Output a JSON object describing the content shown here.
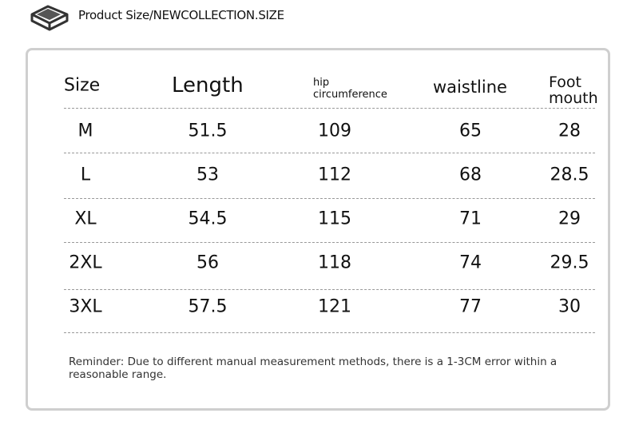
{
  "header": {
    "title": "Product Size/NEWCOLLECTION.SIZE"
  },
  "table": {
    "columns": [
      "Size",
      "Length",
      "hip circumference",
      "waistline",
      "Foot mouth"
    ],
    "rows": [
      [
        "M",
        "51.5",
        "109",
        "65",
        "28"
      ],
      [
        "L",
        "53",
        "112",
        "68",
        "28.5"
      ],
      [
        "XL",
        "54.5",
        "115",
        "71",
        "29"
      ],
      [
        "2XL",
        "56",
        "118",
        "74",
        "29.5"
      ],
      [
        "3XL",
        "57.5",
        "121",
        "77",
        "30"
      ]
    ]
  },
  "note": "Reminder: Due to different manual measurement methods, there is a 1-3CM error within a reasonable range."
}
